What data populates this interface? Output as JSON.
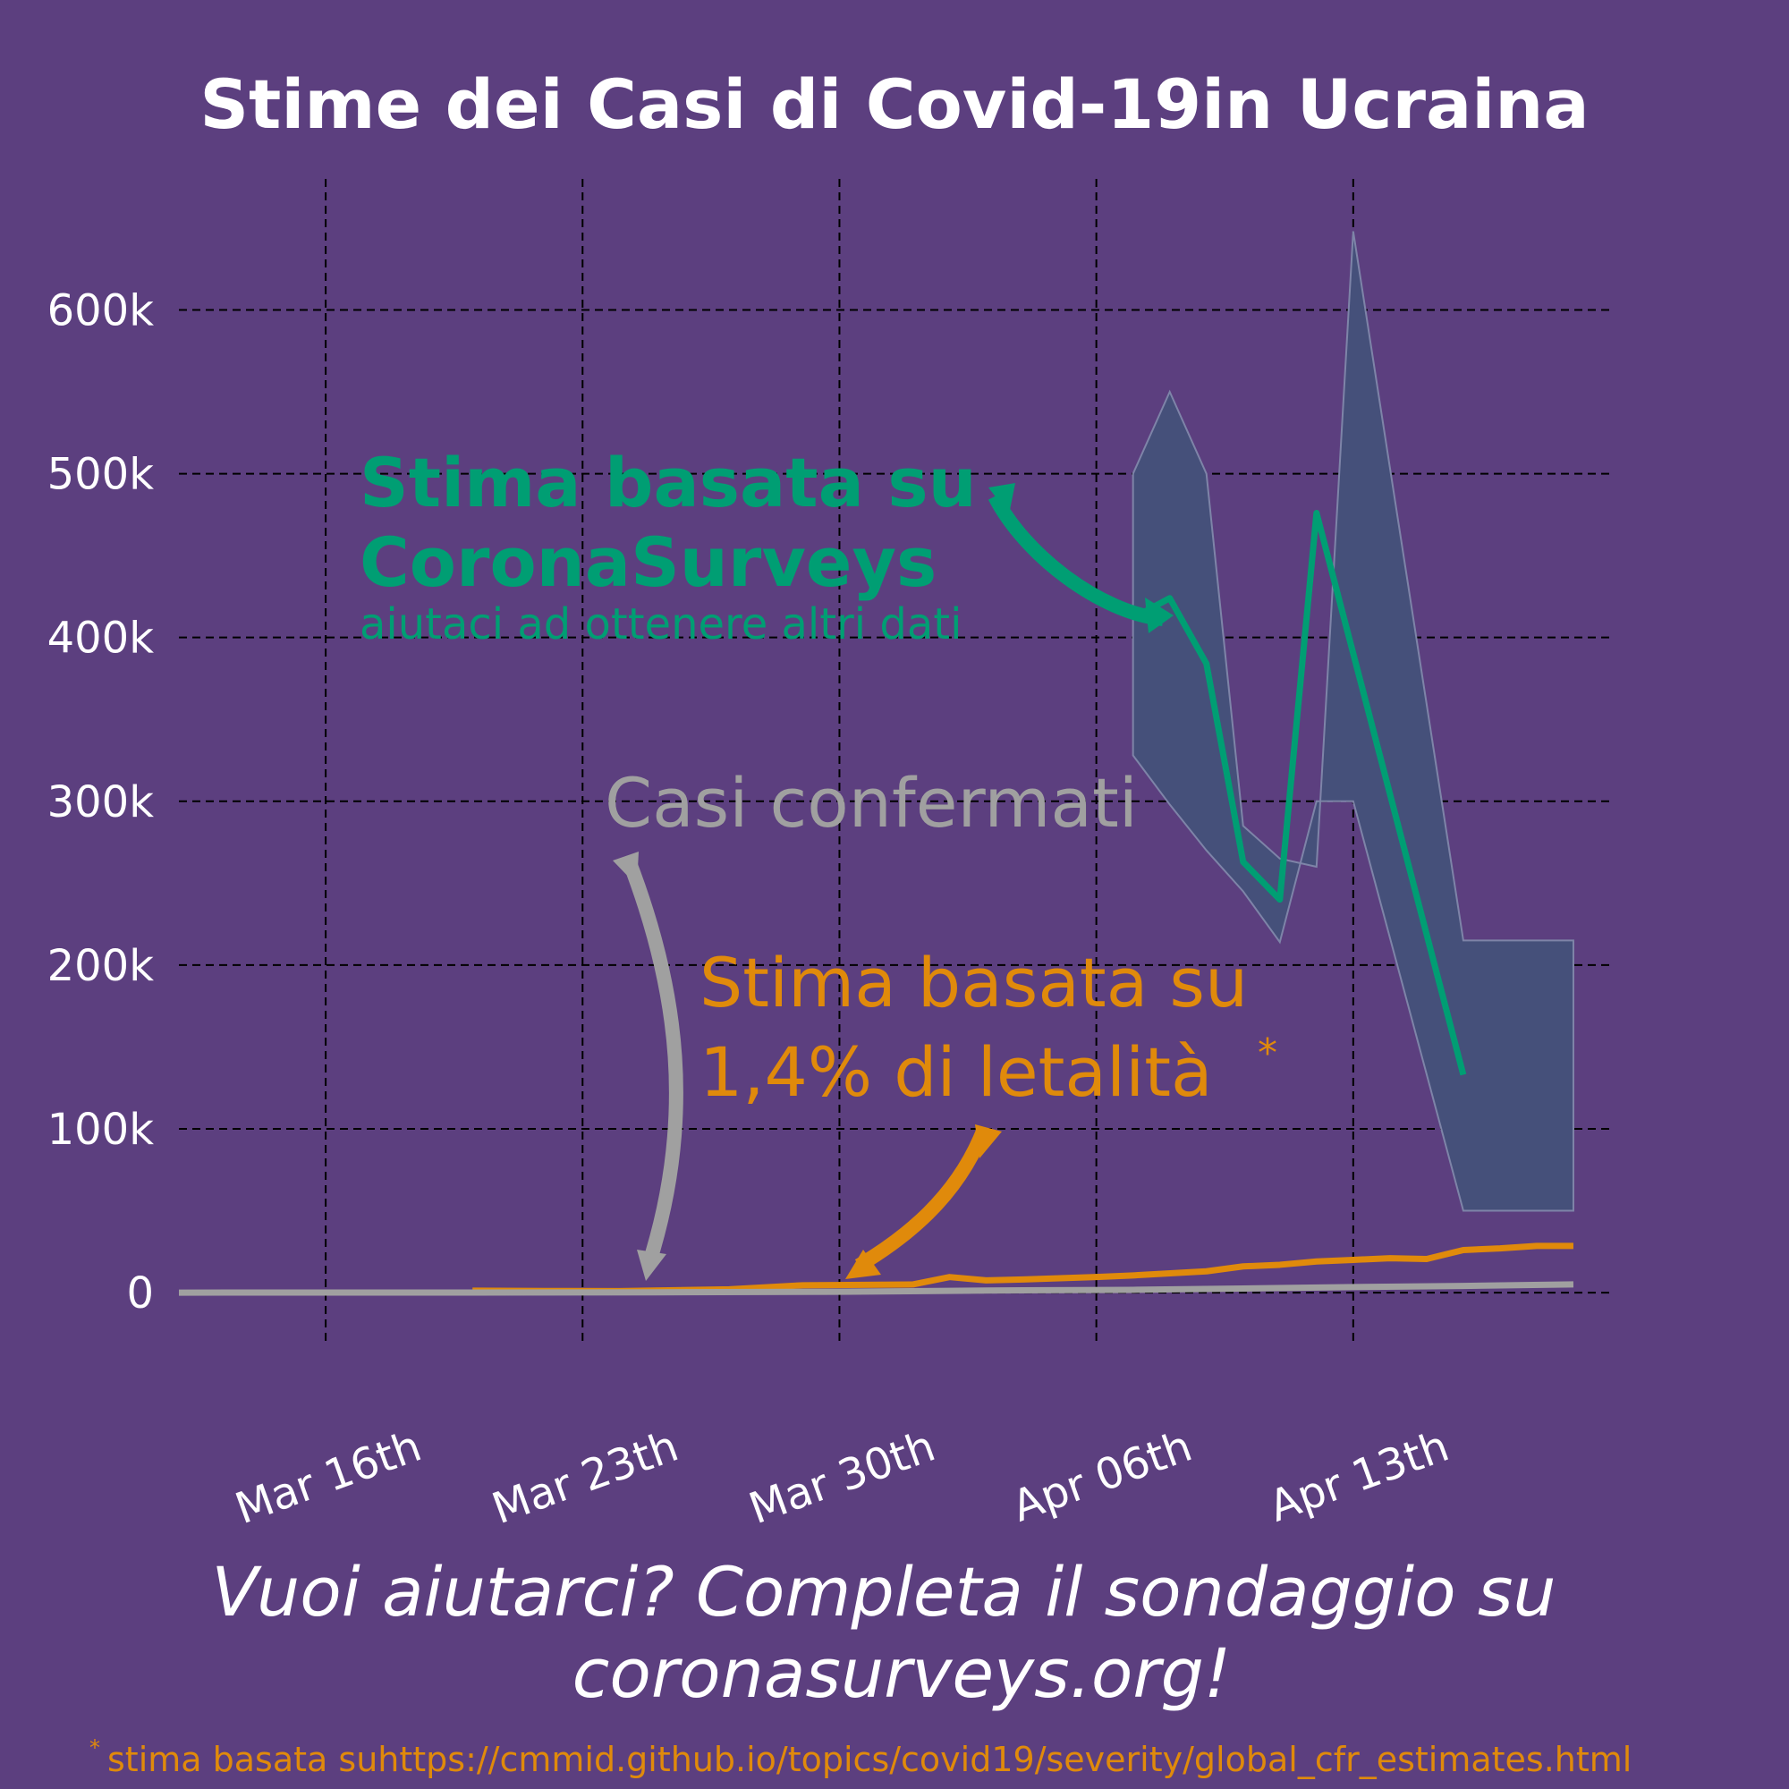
{
  "chart_data": {
    "type": "line",
    "title": "Stime dei Casi di Covid-19in Ucraina",
    "xlabel": "",
    "ylabel": "",
    "x_start": "2020-03-12",
    "x_end": "2020-04-20",
    "ylim": [
      -30000,
      680000
    ],
    "grid": true,
    "x_ticks": [
      {
        "date": "2020-03-16",
        "label": "Mar 16th"
      },
      {
        "date": "2020-03-23",
        "label": "Mar 23th"
      },
      {
        "date": "2020-03-30",
        "label": "Mar 30th"
      },
      {
        "date": "2020-04-06",
        "label": "Apr 06th"
      },
      {
        "date": "2020-04-13",
        "label": "Apr 13th"
      }
    ],
    "y_ticks": [
      {
        "value": 0,
        "label": "0"
      },
      {
        "value": 100000,
        "label": "100k"
      },
      {
        "value": 200000,
        "label": "200k"
      },
      {
        "value": 300000,
        "label": "300k"
      },
      {
        "value": 400000,
        "label": "400k"
      },
      {
        "value": 500000,
        "label": "500k"
      },
      {
        "value": 600000,
        "label": "600k"
      }
    ],
    "band": {
      "color": "#45507a",
      "edge_color": "#7e84a8",
      "upper": [
        [
          "2020-04-07",
          500000
        ],
        [
          "2020-04-08",
          550000
        ],
        [
          "2020-04-09",
          500000
        ],
        [
          "2020-04-10",
          285000
        ],
        [
          "2020-04-11",
          265000
        ],
        [
          "2020-04-12",
          260000
        ],
        [
          "2020-04-13",
          648000
        ],
        [
          "2020-04-16",
          215000
        ],
        [
          "2020-04-19",
          215000
        ]
      ],
      "lower": [
        [
          "2020-04-07",
          328000
        ],
        [
          "2020-04-08",
          298000
        ],
        [
          "2020-04-09",
          270000
        ],
        [
          "2020-04-10",
          245000
        ],
        [
          "2020-04-11",
          214000
        ],
        [
          "2020-04-12",
          300000
        ],
        [
          "2020-04-13",
          300000
        ],
        [
          "2020-04-16",
          50000
        ],
        [
          "2020-04-19",
          50000
        ]
      ]
    },
    "series": [
      {
        "color": "#009e73",
        "points": [
          [
            "2020-04-07",
            412000
          ],
          [
            "2020-04-08",
            424000
          ],
          [
            "2020-04-09",
            384000
          ],
          [
            "2020-04-10",
            263000
          ],
          [
            "2020-04-11",
            240000
          ],
          [
            "2020-04-12",
            476000
          ],
          [
            "2020-04-16",
            133000
          ]
        ]
      },
      {
        "color": "#e08a0b",
        "points": [
          [
            "2020-03-20",
            1200
          ],
          [
            "2020-03-22",
            1000
          ],
          [
            "2020-03-24",
            900
          ],
          [
            "2020-03-27",
            2000
          ],
          [
            "2020-03-29",
            4500
          ],
          [
            "2020-04-01",
            5000
          ],
          [
            "2020-04-02",
            9500
          ],
          [
            "2020-04-03",
            7500
          ],
          [
            "2020-04-04",
            8000
          ],
          [
            "2020-04-06",
            9500
          ],
          [
            "2020-04-07",
            10500
          ],
          [
            "2020-04-09",
            13000
          ],
          [
            "2020-04-10",
            16000
          ],
          [
            "2020-04-11",
            17000
          ],
          [
            "2020-04-12",
            19000
          ],
          [
            "2020-04-13",
            20000
          ],
          [
            "2020-04-14",
            21000
          ],
          [
            "2020-04-15",
            20500
          ],
          [
            "2020-04-16",
            26000
          ],
          [
            "2020-04-17",
            27000
          ],
          [
            "2020-04-18",
            28500
          ],
          [
            "2020-04-19",
            28500
          ]
        ]
      },
      {
        "color": "#a0a0a0",
        "points": [
          [
            "2020-03-12",
            0
          ],
          [
            "2020-03-20",
            50
          ],
          [
            "2020-03-25",
            200
          ],
          [
            "2020-03-30",
            500
          ],
          [
            "2020-04-03",
            1300
          ],
          [
            "2020-04-07",
            1700
          ],
          [
            "2020-04-10",
            2500
          ],
          [
            "2020-04-13",
            3400
          ],
          [
            "2020-04-16",
            4100
          ],
          [
            "2020-04-19",
            5000
          ]
        ]
      }
    ],
    "annotations": {
      "green_line1": "Stima basata su",
      "green_line2": "CoronaSurveys",
      "green_sub": "aiutaci ad ottenere altri dati",
      "grey": "Casi confermati",
      "orange_line1": "Stima basata su",
      "orange_line2": "1,4% di letalità",
      "orange_star": "*"
    }
  },
  "cta": {
    "line1": "Vuoi aiutarci? Completa il sondaggio su",
    "line2": "coronasurveys.org!"
  },
  "footnote": {
    "star": "*",
    "text": "stima basata suhttps://cmmid.github.io/topics/covid19/severity/global_cfr_estimates.html"
  }
}
